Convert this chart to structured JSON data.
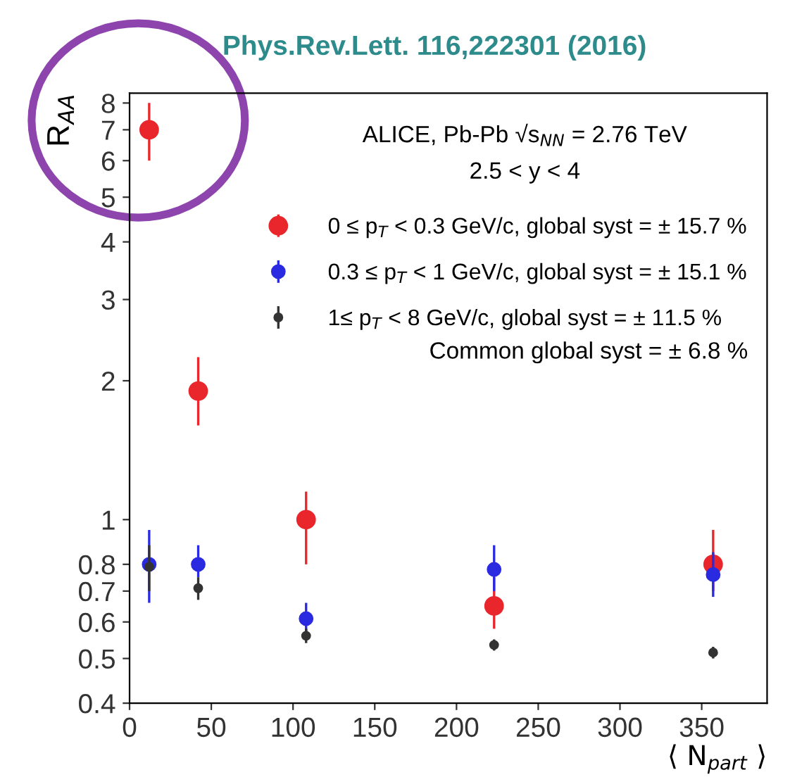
{
  "chart_data": {
    "type": "scatter",
    "title": "Phys.Rev.Lett. 116,222301 (2016)",
    "xlabel": "⟨ N$_{part}$ ⟩",
    "ylabel": "R$_{AA}$",
    "annotations": [
      "ALICE, Pb-Pb √s$_{NN}$ = 2.76 TeV",
      "2.5 < y < 4",
      "Common global syst = ± 6.8 %"
    ],
    "x": [
      12,
      42,
      108,
      223,
      357
    ],
    "series": [
      {
        "name": "0 ≤ p$_{T}$ < 0.3 GeV/c, global syst = ± 15.7 %",
        "color": "#e8262b",
        "values": [
          7.0,
          1.9,
          1.0,
          0.65,
          0.8
        ],
        "errors": [
          [
            6.0,
            8.0
          ],
          [
            1.6,
            2.25
          ],
          [
            0.8,
            1.15
          ],
          [
            0.58,
            0.75
          ],
          [
            0.7,
            0.95
          ]
        ]
      },
      {
        "name": "0.3 ≤ p$_{T}$ < 1 GeV/c, global syst = ± 15.1 %",
        "color": "#2a2ae0",
        "values": [
          0.8,
          0.8,
          0.61,
          0.78,
          0.76
        ],
        "errors": [
          [
            0.66,
            0.95
          ],
          [
            0.75,
            0.88
          ],
          [
            0.57,
            0.66
          ],
          [
            0.7,
            0.88
          ],
          [
            0.68,
            0.85
          ]
        ]
      },
      {
        "name": "1≤ p$_{T}$ < 8 GeV/c, global syst = ± 11.5 %",
        "color": "#333333",
        "values": [
          0.79,
          0.71,
          0.56,
          0.535,
          0.515
        ],
        "errors": [
          [
            0.7,
            0.88
          ],
          [
            0.67,
            0.75
          ],
          [
            0.54,
            0.58
          ],
          [
            0.52,
            0.55
          ],
          [
            0.5,
            0.53
          ]
        ]
      }
    ],
    "xlim": [
      0,
      390
    ],
    "ylim": [
      0.4,
      8.4
    ],
    "log": "y",
    "xticks": [
      0,
      50,
      100,
      150,
      200,
      250,
      300,
      350
    ],
    "yticks": [
      0.4,
      0.5,
      0.6,
      0.7,
      0.8,
      1,
      2,
      3,
      4,
      5,
      6,
      7,
      8
    ],
    "marker": "circle",
    "grid": false,
    "legend": "top right"
  }
}
